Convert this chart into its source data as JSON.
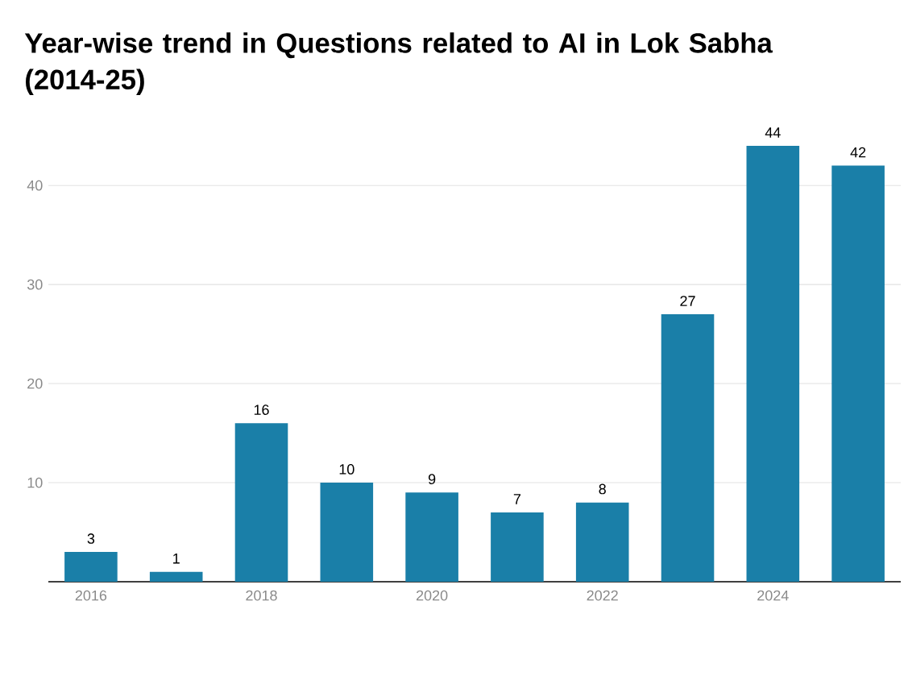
{
  "chart_data": {
    "type": "bar",
    "title": "Year-wise trend in Questions related to AI in Lok Sabha (2014-25)",
    "categories": [
      "2016",
      null,
      "2018",
      null,
      "2020",
      null,
      "2022",
      null,
      "2024",
      null
    ],
    "values": [
      3,
      1,
      16,
      10,
      9,
      7,
      8,
      27,
      44,
      42
    ],
    "color": "#1a7fa8",
    "ylim": [
      0,
      44
    ],
    "yticks": [
      10,
      20,
      30,
      40
    ],
    "grid": "y",
    "data_labels": true
  }
}
